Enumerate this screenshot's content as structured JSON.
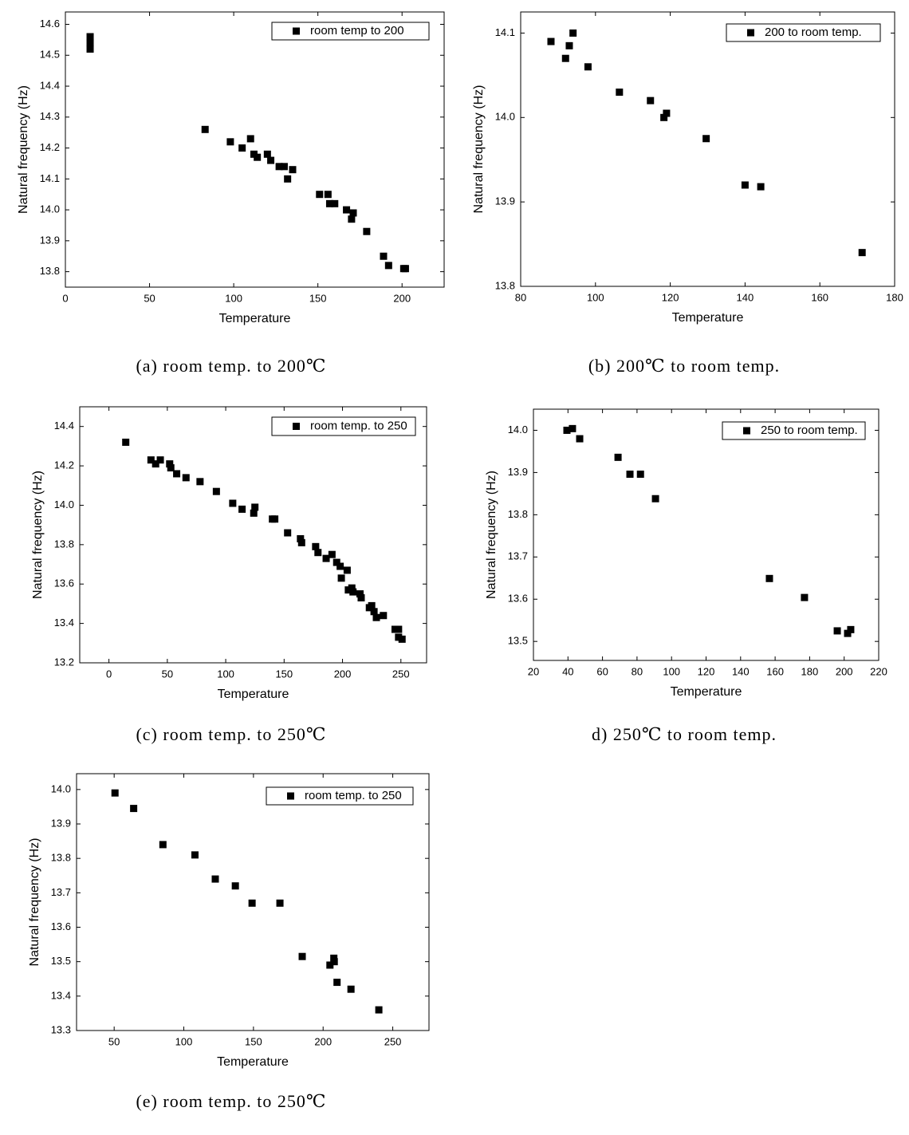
{
  "chart_data": [
    {
      "type": "scatter",
      "caption": "(a) room temp. to 200℃",
      "xlabel": "Temperature",
      "ylabel": "Natural frequency (Hz)",
      "xlim": [
        0,
        225
      ],
      "ylim": [
        13.75,
        14.64
      ],
      "xticks": [
        0,
        50,
        100,
        150,
        200
      ],
      "yticks": [
        13.8,
        13.9,
        {
          "value": 14,
          "label": "14.0"
        },
        14.1,
        14.2,
        14.3,
        14.4,
        14.5,
        14.6
      ],
      "series": [
        {
          "name": "room temp to 200",
          "color": "#000000",
          "x": [
            14.7,
            14.7,
            14.7,
            83,
            98,
            105,
            110,
            112,
            114,
            120,
            122,
            127,
            130,
            132,
            135,
            151,
            156,
            157,
            160,
            167,
            171,
            170,
            179,
            189,
            192,
            201,
            202
          ],
          "values": [
            14.56,
            14.54,
            14.52,
            14.26,
            14.22,
            14.2,
            14.23,
            14.18,
            14.17,
            14.18,
            14.16,
            14.14,
            14.14,
            14.1,
            14.13,
            14.05,
            14.05,
            14.02,
            14.02,
            14.0,
            13.99,
            13.97,
            13.93,
            13.85,
            13.82,
            13.81,
            13.81
          ]
        }
      ]
    },
    {
      "type": "scatter",
      "caption": "(b) 200℃ to room temp.",
      "xlabel": "Temperature",
      "ylabel": "Natural frequency (Hz)",
      "xlim": [
        80,
        180
      ],
      "ylim": [
        13.8,
        14.125
      ],
      "xticks": [
        80,
        100,
        120,
        140,
        160,
        180
      ],
      "yticks": [
        13.8,
        13.9,
        {
          "value": 14,
          "label": "14.0"
        },
        14.1
      ],
      "series": [
        {
          "name": "200 to room temp.",
          "color": "#000000",
          "x": [
            88.1,
            92,
            93,
            94,
            98,
            106.4,
            114.7,
            118.3,
            119,
            129.6,
            140,
            144.2,
            171.3
          ],
          "values": [
            14.09,
            14.07,
            14.085,
            14.1,
            14.06,
            14.03,
            14.02,
            14.0,
            14.005,
            13.975,
            13.92,
            13.918,
            13.84
          ]
        }
      ]
    },
    {
      "type": "scatter",
      "caption": "(c) room temp. to 250℃",
      "xlabel": "Temperature",
      "ylabel": "Natural frequency (Hz)",
      "xlim": [
        -25,
        272
      ],
      "ylim": [
        13.2,
        14.5
      ],
      "xticks": [
        0,
        50,
        100,
        150,
        200,
        250
      ],
      "yticks": [
        13.2,
        13.4,
        13.6,
        13.8,
        {
          "value": 14,
          "label": "14.0"
        },
        14.2,
        14.4
      ],
      "series": [
        {
          "name": "room temp. to 250",
          "color": "#000000",
          "x": [
            14.4,
            36,
            40,
            44,
            52,
            53,
            58,
            66,
            78,
            92,
            106,
            114,
            124,
            125,
            140,
            142,
            153,
            164,
            165,
            177,
            179,
            186,
            191,
            195,
            198,
            199,
            204,
            205,
            208,
            209,
            215,
            216,
            223,
            225,
            227,
            229,
            235,
            245,
            248,
            248,
            251
          ],
          "values": [
            14.32,
            14.23,
            14.21,
            14.23,
            14.21,
            14.19,
            14.16,
            14.14,
            14.12,
            14.07,
            14.01,
            13.98,
            13.96,
            13.99,
            13.93,
            13.93,
            13.86,
            13.83,
            13.81,
            13.79,
            13.76,
            13.73,
            13.75,
            13.71,
            13.69,
            13.63,
            13.67,
            13.57,
            13.58,
            13.56,
            13.55,
            13.53,
            13.48,
            13.49,
            13.46,
            13.43,
            13.44,
            13.37,
            13.37,
            13.33,
            13.32
          ]
        }
      ]
    },
    {
      "type": "scatter",
      "caption": "d) 250℃ to room temp.",
      "xlabel": "Temperature",
      "ylabel": "Natural frequency (Hz)",
      "xlim": [
        20,
        220
      ],
      "ylim": [
        13.455,
        14.05
      ],
      "xticks": [
        20,
        40,
        60,
        80,
        100,
        120,
        140,
        160,
        180,
        200,
        220
      ],
      "yticks": [
        13.5,
        13.6,
        13.7,
        13.8,
        13.9,
        {
          "value": 14,
          "label": "14.0"
        }
      ],
      "series": [
        {
          "name": "250 to room temp.",
          "color": "#000000",
          "x": [
            39.4,
            42.6,
            46.8,
            69,
            75.9,
            82,
            90.7,
            156.7,
            177,
            196,
            202,
            203.8
          ],
          "values": [
            14.0,
            14.004,
            13.98,
            13.936,
            13.896,
            13.896,
            13.838,
            13.649,
            13.604,
            13.525,
            13.519,
            13.528
          ]
        }
      ]
    },
    {
      "type": "scatter",
      "caption": "(e) room temp. to 250℃",
      "xlabel": "Temperature",
      "ylabel": "Natural frequency (Hz)",
      "xlim": [
        23,
        276
      ],
      "ylim": [
        13.3,
        14.046
      ],
      "xticks": [
        50,
        100,
        150,
        200,
        250
      ],
      "yticks": [
        13.3,
        13.4,
        13.5,
        13.6,
        13.7,
        13.8,
        13.9,
        {
          "value": 14,
          "label": "14.0"
        }
      ],
      "series": [
        {
          "name": "room temp. to 250",
          "color": "#000000",
          "x": [
            50.6,
            64,
            85,
            108,
            122.6,
            137,
            149,
            169,
            185,
            204.9,
            207.7,
            208,
            210,
            220,
            240
          ],
          "values": [
            13.99,
            13.945,
            13.84,
            13.81,
            13.74,
            13.72,
            13.67,
            13.67,
            13.515,
            13.49,
            13.51,
            13.5,
            13.44,
            13.42,
            13.36
          ]
        }
      ]
    }
  ]
}
